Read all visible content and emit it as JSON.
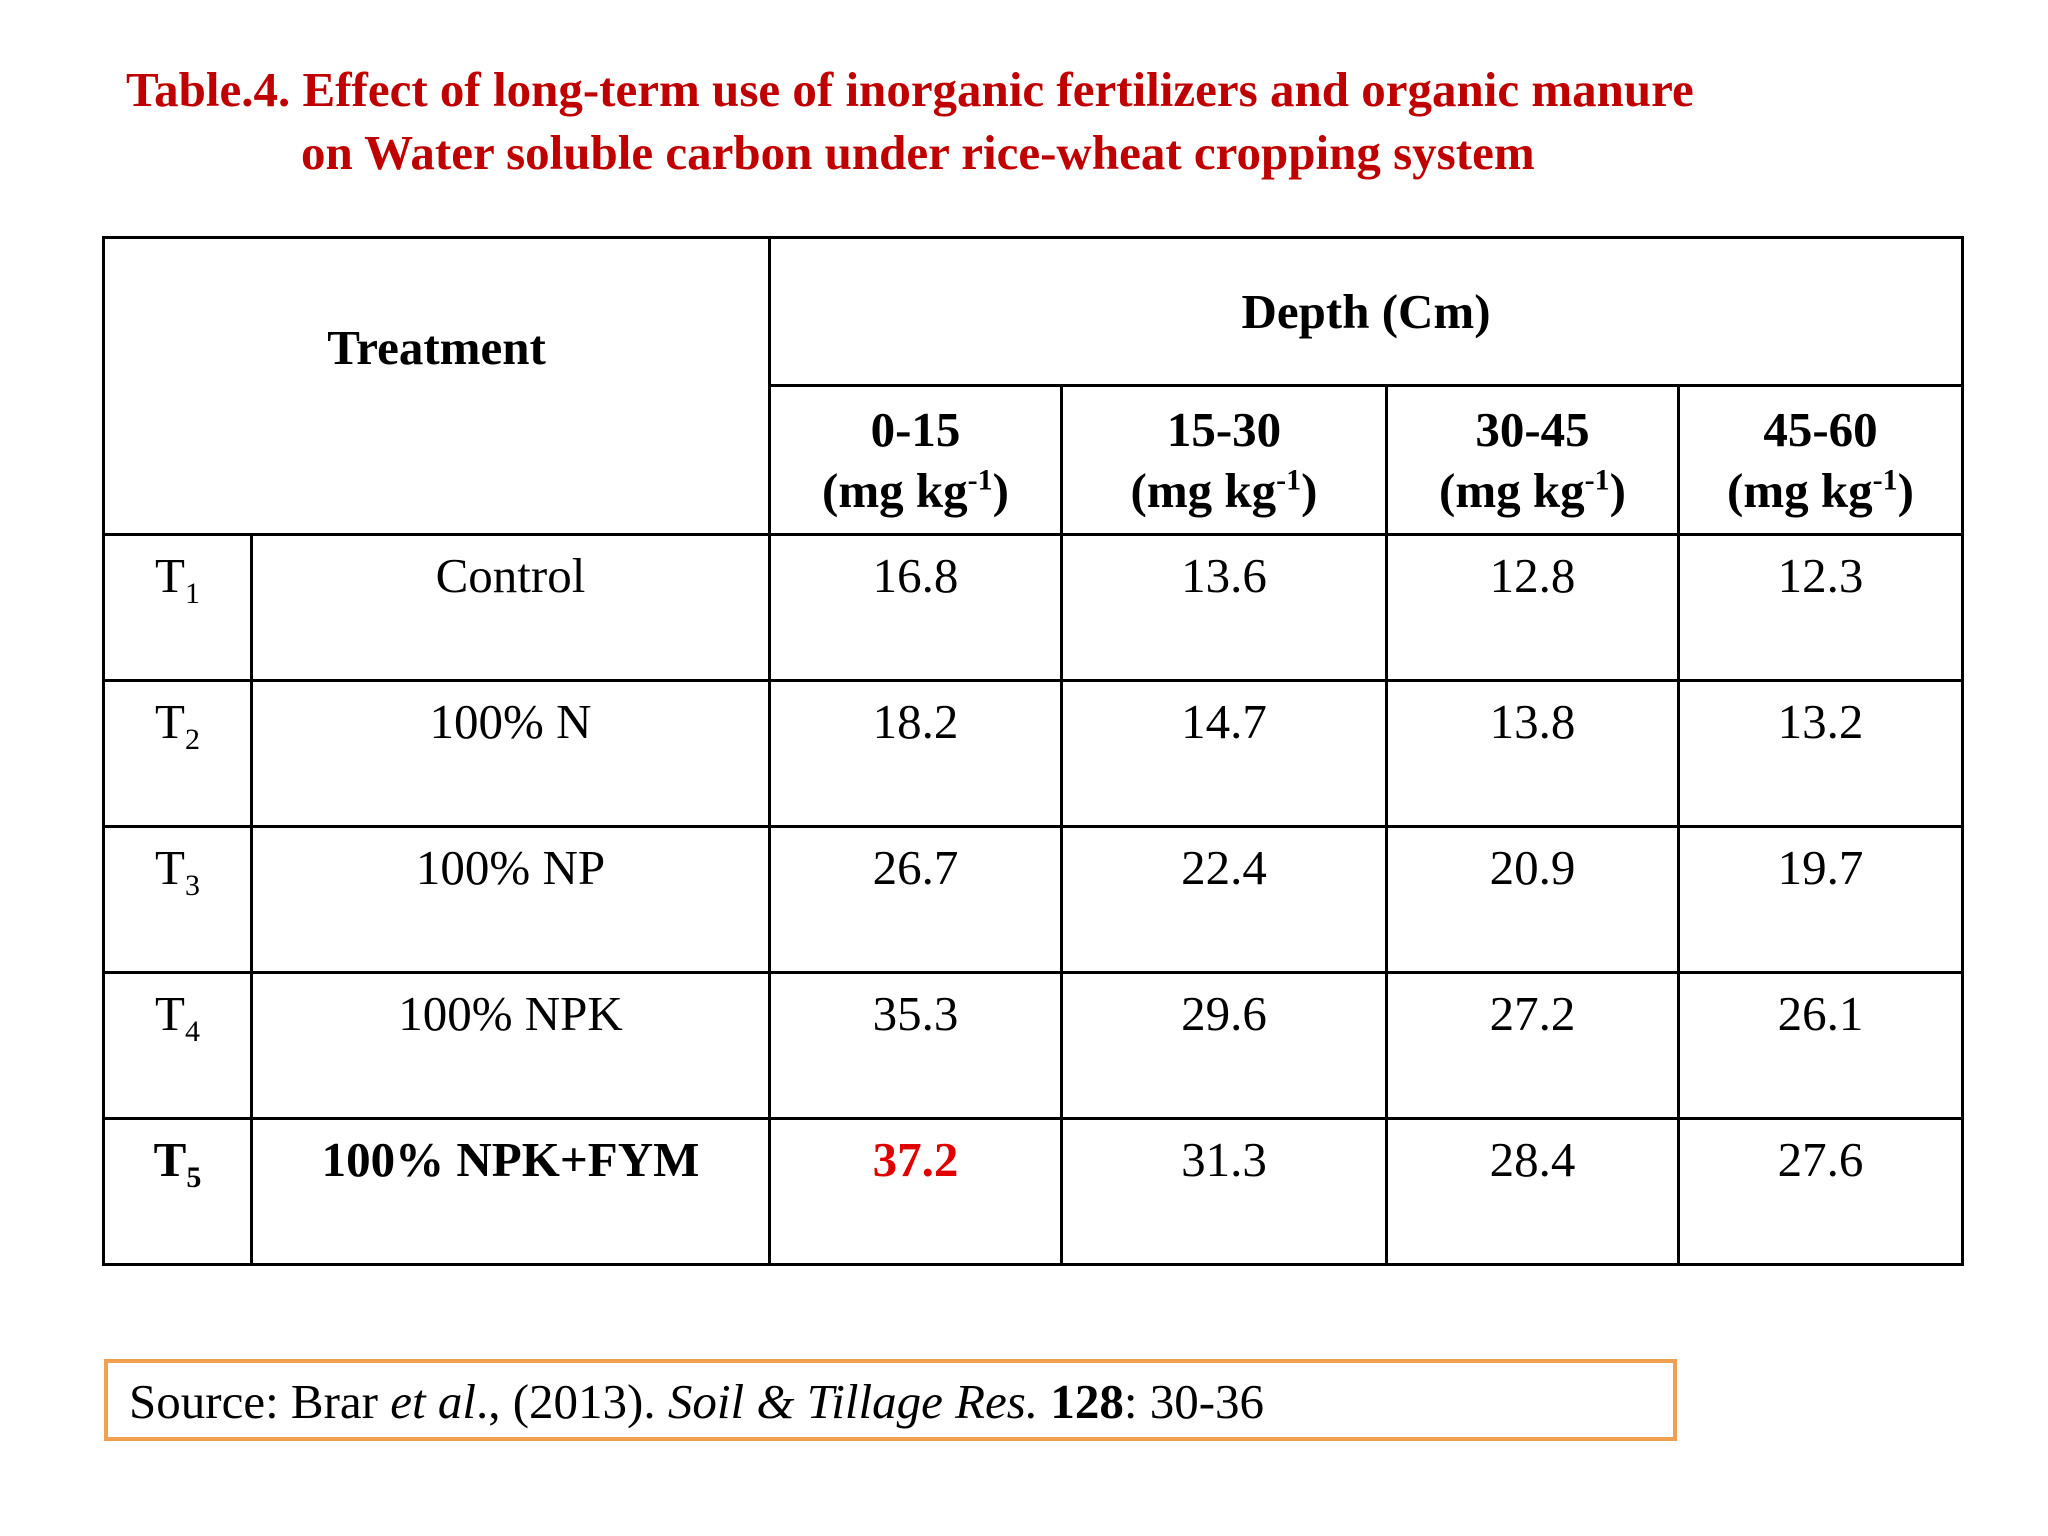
{
  "title": {
    "line1": "Table.4. Effect of long-term use of inorganic fertilizers and organic manure",
    "line2": "on Water soluble carbon under rice-wheat cropping system"
  },
  "table": {
    "treatment_header": "Treatment",
    "depth_header": "Depth (Cm)",
    "unit_prefix": "(mg kg",
    "unit_exp": "-1",
    "unit_suffix": ")",
    "depth_columns": [
      "0-15",
      "15-30",
      "30-45",
      "45-60"
    ],
    "rows": [
      {
        "code": "T",
        "sub": "1",
        "name": "Control",
        "values": [
          "16.8",
          "13.6",
          "12.8",
          "12.3"
        ]
      },
      {
        "code": "T",
        "sub": "2",
        "name": "100% N",
        "values": [
          "18.2",
          "14.7",
          "13.8",
          "13.2"
        ]
      },
      {
        "code": "T",
        "sub": "3",
        "name": "100% NP",
        "values": [
          "26.7",
          "22.4",
          "20.9",
          "19.7"
        ]
      },
      {
        "code": "T",
        "sub": "4",
        "name": "100% NPK",
        "values": [
          "35.3",
          "29.6",
          "27.2",
          "26.1"
        ]
      },
      {
        "code": "T",
        "sub": "5",
        "name": "100% NPK+FYM",
        "values": [
          "37.2",
          "31.3",
          "28.4",
          "27.6"
        ]
      }
    ]
  },
  "source": {
    "prefix": "Source: Brar ",
    "etal": "et al",
    "year": "., (2013). ",
    "journal": "Soil & Tillage Res.",
    "space": " ",
    "volume": "128",
    "pages": ": 30-36"
  },
  "colors": {
    "title": "#c00000",
    "highlight": "#e00000",
    "source_border": "#f0a050"
  }
}
